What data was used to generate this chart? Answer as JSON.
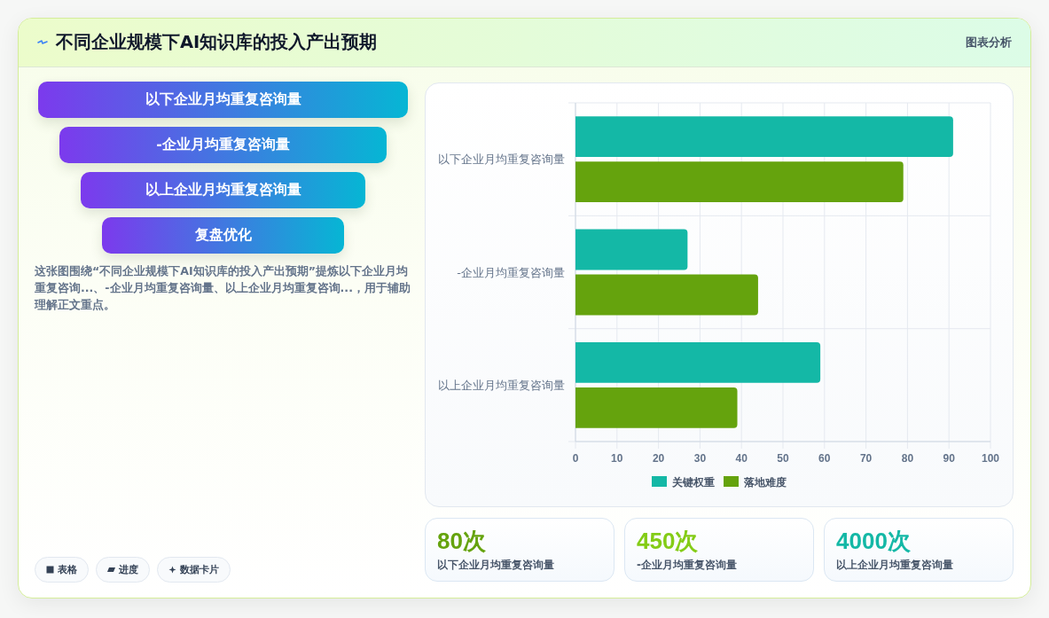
{
  "chart_data": [
    {
      "type": "other",
      "title": "不同企业规模下AI知识库的投入产出预期",
      "categories": [
        "以下企业月均重复咨询量",
        "-企业月均重复咨询量",
        "以上企业月均重复咨询量",
        "复盘优化"
      ],
      "annotations": [
        "图表分析",
        "这张图围绕“不同企业规模下AI知识库的投入产出预期”提炼以下企业月均重复咨询...、-企业月均重复咨询量、以上企业月均重复咨询...，用于辅助理解正文重点。",
        "表格",
        "进度",
        "数据卡片"
      ]
    },
    {
      "type": "bar",
      "orientation": "horizontal",
      "categories": [
        "以下企业月均重复咨询量",
        "-企业月均重复咨询量",
        "以上企业月均重复咨询量"
      ],
      "series": [
        {
          "name": "关键权重",
          "color": "#14b8a6",
          "values": [
            91,
            27,
            59
          ]
        },
        {
          "name": "落地难度",
          "color": "#65a30d",
          "values": [
            79,
            44,
            39
          ]
        }
      ],
      "xlim": [
        0,
        100
      ],
      "xticks": [
        0,
        10,
        20,
        30,
        40,
        50,
        60,
        70,
        80,
        90,
        100
      ],
      "grid": true,
      "legend": "bottom"
    },
    {
      "type": "other",
      "annotations": [
        "80次",
        "以下企业月均重复咨询量",
        "450次",
        "-企业月均重复咨询量",
        "4000次",
        "以上企业月均重复咨询量"
      ],
      "colors": [
        "#65a30d",
        "#84cc16",
        "#14b8a6"
      ]
    }
  ]
}
